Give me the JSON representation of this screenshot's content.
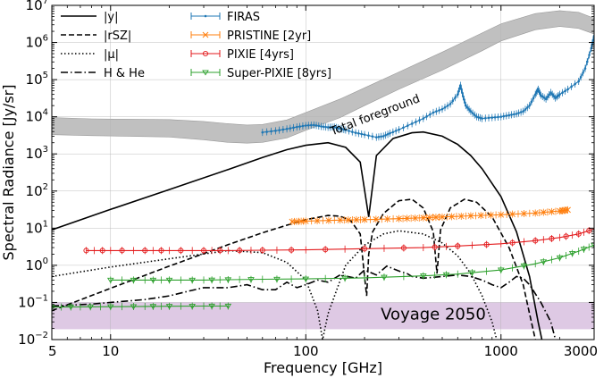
{
  "chart_data": {
    "type": "line",
    "xlabel": "Frequency [GHz]",
    "ylabel": "Spectral Radiance [Jy/sr]",
    "xscale": "log",
    "yscale": "log",
    "xlim": [
      5,
      3000
    ],
    "ylim": [
      0.01,
      10000000
    ],
    "grid": true,
    "x_tick_labels": [
      {
        "value": 5,
        "label": "5"
      },
      {
        "value": 10,
        "label": "10"
      },
      {
        "value": 100,
        "label": "100"
      },
      {
        "value": 1000,
        "label": "1000"
      },
      {
        "value": 3000,
        "label": "3000"
      }
    ],
    "y_tick_labels": [
      {
        "value": 0.01,
        "base": "10",
        "exp": "−2"
      },
      {
        "value": 0.1,
        "base": "10",
        "exp": "−1"
      },
      {
        "value": 1,
        "base": "10",
        "exp": "0"
      },
      {
        "value": 10,
        "base": "10",
        "exp": "1"
      },
      {
        "value": 100,
        "base": "10",
        "exp": "2"
      },
      {
        "value": 1000,
        "base": "10",
        "exp": "3"
      },
      {
        "value": 10000,
        "base": "10",
        "exp": "4"
      },
      {
        "value": 100000,
        "base": "10",
        "exp": "5"
      },
      {
        "value": 1000000,
        "base": "10",
        "exp": "6"
      },
      {
        "value": 10000000,
        "base": "10",
        "exp": "7"
      }
    ],
    "legend_placement": "top-left",
    "annotations": [
      {
        "text": "Total foreground",
        "x": 230,
        "y": 9000,
        "rotation": -21
      },
      {
        "text": "Voyage 2050",
        "x": 450,
        "y": 0.035
      }
    ],
    "bands": [
      {
        "name": "Total foreground",
        "color": "#c0c0c0",
        "upper": [
          [
            5,
            9500
          ],
          [
            8,
            8800
          ],
          [
            12,
            8600
          ],
          [
            20,
            8400
          ],
          [
            30,
            7500
          ],
          [
            40,
            6500
          ],
          [
            50,
            6000
          ],
          [
            60,
            6200
          ],
          [
            80,
            8200
          ],
          [
            100,
            13000
          ],
          [
            150,
            30000
          ],
          [
            200,
            60000
          ],
          [
            300,
            160000
          ],
          [
            500,
            550000
          ],
          [
            800,
            1800000
          ],
          [
            1000,
            3200000
          ],
          [
            1500,
            6000000
          ],
          [
            2000,
            7200000
          ],
          [
            2500,
            6500000
          ],
          [
            3000,
            4500000
          ]
        ],
        "lower": [
          [
            5,
            3300
          ],
          [
            8,
            3100
          ],
          [
            12,
            3000
          ],
          [
            20,
            2850
          ],
          [
            30,
            2400
          ],
          [
            40,
            2050
          ],
          [
            50,
            1950
          ],
          [
            60,
            2050
          ],
          [
            80,
            2700
          ],
          [
            100,
            4300
          ],
          [
            150,
            9500
          ],
          [
            200,
            20000
          ],
          [
            300,
            55000
          ],
          [
            500,
            180000
          ],
          [
            800,
            600000
          ],
          [
            1000,
            1100000
          ],
          [
            1500,
            2200000
          ],
          [
            2000,
            2700000
          ],
          [
            2500,
            2400000
          ],
          [
            3000,
            1700000
          ]
        ]
      },
      {
        "name": "Voyage 2050",
        "color": "#d8bfdf",
        "x": [
          5,
          3000
        ],
        "y": [
          0.019,
          0.1
        ]
      }
    ],
    "series": [
      {
        "name": "|y|",
        "legend": "|y|",
        "style": "solid",
        "color": "#000000",
        "points": [
          [
            5,
            9
          ],
          [
            10,
            32
          ],
          [
            20,
            110
          ],
          [
            40,
            380
          ],
          [
            60,
            800
          ],
          [
            80,
            1300
          ],
          [
            100,
            1700
          ],
          [
            130,
            2000
          ],
          [
            160,
            1500
          ],
          [
            190,
            600
          ],
          [
            210,
            20
          ],
          [
            230,
            900
          ],
          [
            280,
            2600
          ],
          [
            350,
            3700
          ],
          [
            400,
            3900
          ],
          [
            500,
            3000
          ],
          [
            600,
            1800
          ],
          [
            700,
            900
          ],
          [
            800,
            400
          ],
          [
            1000,
            70
          ],
          [
            1200,
            8
          ],
          [
            1400,
            0.5
          ],
          [
            1550,
            0.03
          ],
          [
            1620,
            0.01
          ]
        ]
      },
      {
        "name": "|rSZ|",
        "legend": "|rSZ|",
        "style": "dashed",
        "color": "#000000",
        "points": [
          [
            5,
            0.06
          ],
          [
            10,
            0.24
          ],
          [
            20,
            0.95
          ],
          [
            40,
            3.6
          ],
          [
            60,
            7.5
          ],
          [
            80,
            12
          ],
          [
            100,
            17
          ],
          [
            130,
            22
          ],
          [
            150,
            21
          ],
          [
            170,
            16
          ],
          [
            190,
            7
          ],
          [
            200,
            0.5
          ],
          [
            205,
            0.15
          ],
          [
            210,
            2
          ],
          [
            220,
            8
          ],
          [
            250,
            25
          ],
          [
            300,
            55
          ],
          [
            350,
            60
          ],
          [
            400,
            35
          ],
          [
            450,
            8
          ],
          [
            470,
            0.6
          ],
          [
            490,
            9
          ],
          [
            550,
            35
          ],
          [
            650,
            60
          ],
          [
            750,
            50
          ],
          [
            900,
            20
          ],
          [
            1100,
            3
          ],
          [
            1300,
            0.3
          ],
          [
            1400,
            0.05
          ],
          [
            1500,
            0.01
          ]
        ]
      },
      {
        "name": "|μ|",
        "legend": "|μ|",
        "style": "dotted",
        "color": "#000000",
        "points": [
          [
            5,
            0.5
          ],
          [
            10,
            0.9
          ],
          [
            20,
            1.5
          ],
          [
            40,
            2.5
          ],
          [
            60,
            2.2
          ],
          [
            80,
            1.2
          ],
          [
            100,
            0.4
          ],
          [
            115,
            0.06
          ],
          [
            122,
            0.01
          ],
          [
            130,
            0.05
          ],
          [
            160,
            1
          ],
          [
            200,
            3.5
          ],
          [
            250,
            7
          ],
          [
            300,
            8.5
          ],
          [
            400,
            7
          ],
          [
            500,
            4
          ],
          [
            600,
            1.8
          ],
          [
            700,
            0.6
          ],
          [
            800,
            0.15
          ],
          [
            900,
            0.03
          ],
          [
            950,
            0.01
          ]
        ]
      },
      {
        "name": "H & He",
        "legend": "H & He",
        "style": "dashdot",
        "color": "#000000",
        "points": [
          [
            5,
            0.08
          ],
          [
            8,
            0.09
          ],
          [
            10,
            0.1
          ],
          [
            15,
            0.12
          ],
          [
            20,
            0.15
          ],
          [
            25,
            0.2
          ],
          [
            30,
            0.25
          ],
          [
            40,
            0.25
          ],
          [
            50,
            0.3
          ],
          [
            60,
            0.22
          ],
          [
            70,
            0.22
          ],
          [
            80,
            0.35
          ],
          [
            90,
            0.25
          ],
          [
            100,
            0.3
          ],
          [
            115,
            0.4
          ],
          [
            130,
            0.35
          ],
          [
            150,
            0.55
          ],
          [
            180,
            0.45
          ],
          [
            200,
            0.75
          ],
          [
            230,
            0.55
          ],
          [
            260,
            0.95
          ],
          [
            300,
            0.7
          ],
          [
            330,
            0.6
          ],
          [
            350,
            0.5
          ],
          [
            400,
            0.45
          ],
          [
            500,
            0.5
          ],
          [
            600,
            0.55
          ],
          [
            700,
            0.5
          ],
          [
            800,
            0.4
          ],
          [
            900,
            0.3
          ],
          [
            1000,
            0.25
          ],
          [
            1100,
            0.35
          ],
          [
            1200,
            0.5
          ],
          [
            1300,
            0.45
          ],
          [
            1400,
            0.3
          ],
          [
            1600,
            0.1
          ],
          [
            1800,
            0.03
          ],
          [
            1900,
            0.01
          ]
        ]
      },
      {
        "name": "FIRAS",
        "legend": "FIRAS",
        "style": "errorbar",
        "marker": "dot",
        "color": "#1f77b4",
        "points": [
          [
            60,
            3800
          ],
          [
            70,
            4200
          ],
          [
            80,
            4700
          ],
          [
            90,
            5300
          ],
          [
            100,
            5800
          ],
          [
            110,
            6000
          ],
          [
            120,
            5500
          ],
          [
            130,
            5200
          ],
          [
            140,
            5300
          ],
          [
            150,
            4800
          ],
          [
            160,
            4400
          ],
          [
            180,
            3700
          ],
          [
            200,
            3300
          ],
          [
            230,
            2800
          ],
          [
            250,
            3000
          ],
          [
            270,
            3600
          ],
          [
            300,
            4500
          ],
          [
            350,
            6500
          ],
          [
            400,
            9000
          ],
          [
            450,
            13000
          ],
          [
            500,
            16000
          ],
          [
            550,
            22000
          ],
          [
            600,
            40000
          ],
          [
            620,
            70000
          ],
          [
            640,
            35000
          ],
          [
            660,
            20000
          ],
          [
            700,
            14000
          ],
          [
            750,
            10000
          ],
          [
            800,
            9000
          ],
          [
            900,
            9500
          ],
          [
            1000,
            10000
          ],
          [
            1100,
            11000
          ],
          [
            1200,
            12000
          ],
          [
            1300,
            14000
          ],
          [
            1400,
            20000
          ],
          [
            1500,
            40000
          ],
          [
            1550,
            55000
          ],
          [
            1600,
            38000
          ],
          [
            1700,
            30000
          ],
          [
            1800,
            45000
          ],
          [
            1900,
            32000
          ],
          [
            2000,
            40000
          ],
          [
            2200,
            55000
          ],
          [
            2500,
            90000
          ],
          [
            2700,
            200000
          ],
          [
            2900,
            700000
          ],
          [
            3000,
            1500000
          ]
        ]
      },
      {
        "name": "PRISTINE [2yr]",
        "legend": "PRISTINE [2yr]",
        "style": "errorbar",
        "marker": "x",
        "color": "#ff7f0e",
        "points": [
          [
            85,
            15
          ],
          [
            100,
            15.5
          ],
          [
            150,
            16.5
          ],
          [
            200,
            17
          ],
          [
            300,
            18
          ],
          [
            400,
            19
          ],
          [
            500,
            20
          ],
          [
            700,
            21.5
          ],
          [
            1000,
            23
          ],
          [
            1500,
            25.5
          ],
          [
            2000,
            29
          ],
          [
            2200,
            31
          ]
        ]
      },
      {
        "name": "PIXIE [4yrs]",
        "legend": "PIXIE [4yrs]",
        "style": "errorbar",
        "marker": "circle",
        "color": "#e31a1c",
        "points": [
          [
            7.5,
            2.5
          ],
          [
            10,
            2.5
          ],
          [
            15,
            2.5
          ],
          [
            20,
            2.5
          ],
          [
            30,
            2.5
          ],
          [
            40,
            2.5
          ],
          [
            60,
            2.55
          ],
          [
            100,
            2.6
          ],
          [
            200,
            2.8
          ],
          [
            400,
            3.0
          ],
          [
            600,
            3.3
          ],
          [
            1000,
            3.8
          ],
          [
            1500,
            4.6
          ],
          [
            2000,
            5.6
          ],
          [
            2500,
            7.0
          ],
          [
            3000,
            9.5
          ]
        ]
      },
      {
        "name": "Super-PIXIE [8yrs]",
        "legend": "Super-PIXIE [8yrs]",
        "style": "errorbar",
        "marker": "triangle-down",
        "color": "#2ca02c",
        "points": [
          [
            10,
            0.4
          ],
          [
            15,
            0.4
          ],
          [
            20,
            0.4
          ],
          [
            30,
            0.4
          ],
          [
            40,
            0.41
          ],
          [
            60,
            0.42
          ],
          [
            100,
            0.43
          ],
          [
            200,
            0.46
          ],
          [
            400,
            0.52
          ],
          [
            600,
            0.58
          ],
          [
            1000,
            0.75
          ],
          [
            1500,
            1.1
          ],
          [
            2000,
            1.6
          ],
          [
            2500,
            2.4
          ],
          [
            3000,
            3.5
          ]
        ]
      },
      {
        "name": "Super-PIXIE low band",
        "style": "errorbar",
        "marker": "triangle-down",
        "color": "#2ca02c",
        "points": [
          [
            5,
            0.075
          ],
          [
            7,
            0.076
          ],
          [
            10,
            0.077
          ],
          [
            15,
            0.078
          ],
          [
            20,
            0.079
          ],
          [
            30,
            0.08
          ],
          [
            40,
            0.08
          ]
        ]
      }
    ]
  }
}
